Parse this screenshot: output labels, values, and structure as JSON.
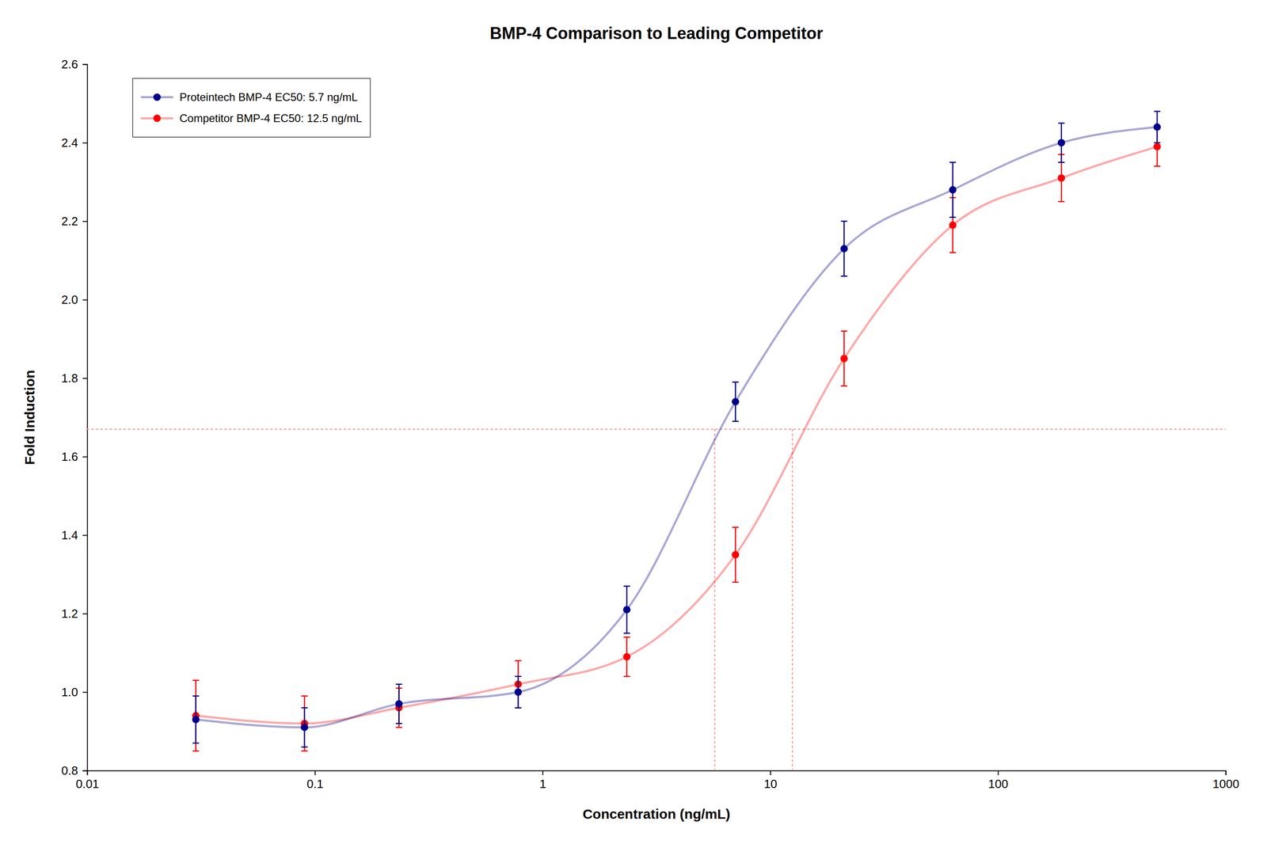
{
  "chart_data": {
    "type": "line",
    "title": "BMP-4 Comparison to Leading Competitor",
    "x_label": "Concentration (ng/mL)",
    "y_label": "Fold Induction",
    "log": "x",
    "grid": false,
    "legend": "upper left",
    "marker": "circle",
    "xlim": [
      0.01,
      1000
    ],
    "xticks": [
      0.01,
      0.1,
      1,
      10,
      100,
      1000
    ],
    "ylim": [
      0.8,
      2.6
    ],
    "yticks": [
      0.8,
      {
        "value": 1.0,
        "label": "1.0"
      },
      1.2,
      1.4,
      1.6,
      1.8,
      {
        "value": 2.0,
        "label": "2.0"
      },
      2.2,
      2.4,
      2.6
    ],
    "x": [
      0.03,
      0.09,
      0.234,
      0.781,
      2.344,
      7.031,
      21.094,
      63.281,
      189.844,
      500.0
    ],
    "series": [
      {
        "name": "Proteintech BMP-4 EC50: 5.7 ng/mL",
        "color": "#00008B",
        "values": [
          0.93,
          0.91,
          0.97,
          1.0,
          1.21,
          1.74,
          2.13,
          2.28,
          2.4,
          2.44
        ],
        "errors": [
          0.06,
          0.05,
          0.05,
          0.04,
          0.06,
          0.05,
          0.07,
          0.07,
          0.05,
          0.04
        ]
      },
      {
        "name": "Competitor BMP-4 EC50: 12.5 ng/mL",
        "color": "#FF0000",
        "values": [
          0.94,
          0.92,
          0.96,
          1.02,
          1.09,
          1.35,
          1.85,
          2.19,
          2.31,
          2.39
        ],
        "errors": [
          0.09,
          0.07,
          0.05,
          0.06,
          0.05,
          0.07,
          0.07,
          0.07,
          0.06,
          0.05
        ]
      }
    ],
    "ec50_lines": {
      "y": 1.67,
      "x": [
        5.7,
        12.5
      ],
      "color": "#FF9999",
      "line_style": "dotted"
    }
  }
}
